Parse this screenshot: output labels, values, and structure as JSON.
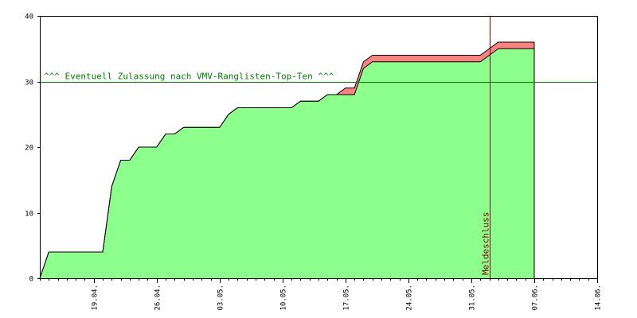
{
  "chart_data": {
    "type": "area",
    "title": "",
    "xlabel": "",
    "ylabel": "",
    "ylim": [
      0,
      40
    ],
    "yticks": [
      0,
      10,
      20,
      30,
      40
    ],
    "xlim": [
      "2024-04-13",
      "2024-06-14"
    ],
    "xtick_labels": [
      {
        "date": "2024-04-19",
        "label": "19.04."
      },
      {
        "date": "2024-04-26",
        "label": "26.04."
      },
      {
        "date": "2024-05-03",
        "label": "03.05."
      },
      {
        "date": "2024-05-10",
        "label": "10.05."
      },
      {
        "date": "2024-05-17",
        "label": "17.05."
      },
      {
        "date": "2024-05-24",
        "label": "24.05."
      },
      {
        "date": "2024-05-31",
        "label": "31.05."
      },
      {
        "date": "2024-06-07",
        "label": "07.06."
      },
      {
        "date": "2024-06-14",
        "label": "14.06."
      }
    ],
    "grid": false,
    "series": [
      {
        "color": "#ff8080",
        "points": [
          [
            "2024-04-13",
            0
          ],
          [
            "2024-04-14",
            4
          ],
          [
            "2024-04-19",
            4
          ],
          [
            "2024-04-20",
            4
          ],
          [
            "2024-04-21",
            14
          ],
          [
            "2024-04-22",
            18
          ],
          [
            "2024-04-23",
            18
          ],
          [
            "2024-04-24",
            20
          ],
          [
            "2024-04-26",
            20
          ],
          [
            "2024-04-27",
            22
          ],
          [
            "2024-04-28",
            22
          ],
          [
            "2024-04-29",
            23
          ],
          [
            "2024-05-03",
            23
          ],
          [
            "2024-05-04",
            25
          ],
          [
            "2024-05-05",
            26
          ],
          [
            "2024-05-10",
            26
          ],
          [
            "2024-05-11",
            26
          ],
          [
            "2024-05-12",
            27
          ],
          [
            "2024-05-14",
            27
          ],
          [
            "2024-05-15",
            28
          ],
          [
            "2024-05-16",
            28
          ],
          [
            "2024-05-17",
            29
          ],
          [
            "2024-05-18",
            29
          ],
          [
            "2024-05-19",
            33
          ],
          [
            "2024-05-20",
            34
          ],
          [
            "2024-06-01",
            34
          ],
          [
            "2024-06-02",
            35
          ],
          [
            "2024-06-03",
            36
          ],
          [
            "2024-06-07",
            36
          ]
        ]
      },
      {
        "color": "#8cff8c",
        "points": [
          [
            "2024-04-13",
            0
          ],
          [
            "2024-04-14",
            4
          ],
          [
            "2024-04-19",
            4
          ],
          [
            "2024-04-20",
            4
          ],
          [
            "2024-04-21",
            14
          ],
          [
            "2024-04-22",
            18
          ],
          [
            "2024-04-23",
            18
          ],
          [
            "2024-04-24",
            20
          ],
          [
            "2024-04-26",
            20
          ],
          [
            "2024-04-27",
            22
          ],
          [
            "2024-04-28",
            22
          ],
          [
            "2024-04-29",
            23
          ],
          [
            "2024-05-03",
            23
          ],
          [
            "2024-05-04",
            25
          ],
          [
            "2024-05-05",
            26
          ],
          [
            "2024-05-10",
            26
          ],
          [
            "2024-05-11",
            26
          ],
          [
            "2024-05-12",
            27
          ],
          [
            "2024-05-14",
            27
          ],
          [
            "2024-05-15",
            28
          ],
          [
            "2024-05-16",
            28
          ],
          [
            "2024-05-17",
            28
          ],
          [
            "2024-05-18",
            28
          ],
          [
            "2024-05-19",
            32
          ],
          [
            "2024-05-20",
            33
          ],
          [
            "2024-06-01",
            33
          ],
          [
            "2024-06-02",
            34
          ],
          [
            "2024-06-03",
            35
          ],
          [
            "2024-06-07",
            35
          ]
        ]
      }
    ],
    "reference_lines": [
      {
        "axis": "y",
        "value": 30,
        "color": "#008000",
        "label": "^^^ Eventuell Zulassung nach VMV-Ranglisten-Top-Ten ^^^"
      },
      {
        "axis": "x",
        "value": "2024-06-02",
        "color": "#800000",
        "label": "Meldeschluss"
      }
    ]
  }
}
